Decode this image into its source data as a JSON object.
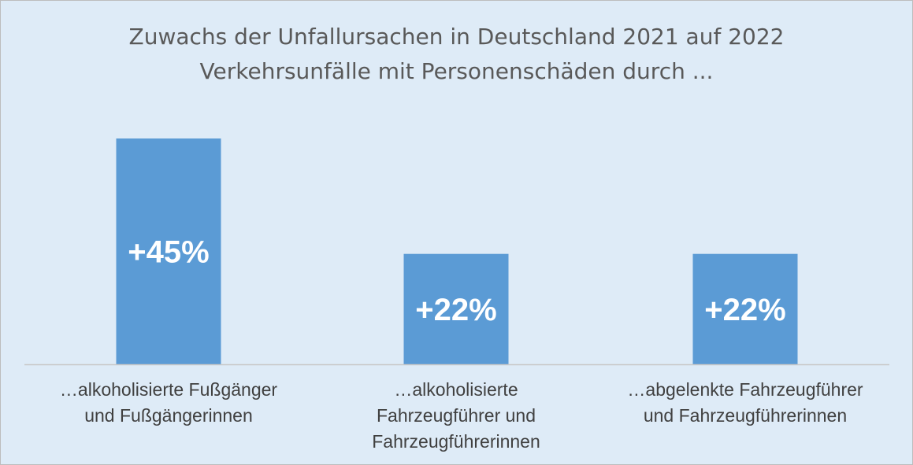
{
  "chart_data": {
    "type": "bar",
    "title": "Zuwachs der Unfallursachen in Deutschland 2021 auf 2022",
    "subtitle": "Verkehrsunfälle mit Personenschäden durch ...",
    "categories": [
      "…alkoholisierte Fußgänger und Fußgängerinnen",
      "…alkoholisierte Fahrzeugführer und Fahrzeugführerinnen",
      "…abgelenkte Fahrzeugführer und Fahrzeugführerinnen"
    ],
    "category_lines": [
      [
        "…alkoholisierte Fußgänger",
        "und Fußgängerinnen"
      ],
      [
        "…alkoholisierte",
        "Fahrzeugführer und",
        "Fahrzeugführerinnen"
      ],
      [
        "…abgelenkte Fahrzeugführer",
        "und Fahrzeugführerinnen"
      ]
    ],
    "values": [
      45,
      22,
      22
    ],
    "data_labels": [
      "+45%",
      "+22%",
      "+22%"
    ],
    "ylim": [
      0,
      45
    ],
    "grid": false,
    "colors": {
      "bar": "#5b9bd5",
      "background": "#deebf7",
      "axis": "#c8c8c8",
      "bar_label": "#ffffff",
      "category_text": "#404040",
      "title_text": "#595959"
    }
  }
}
